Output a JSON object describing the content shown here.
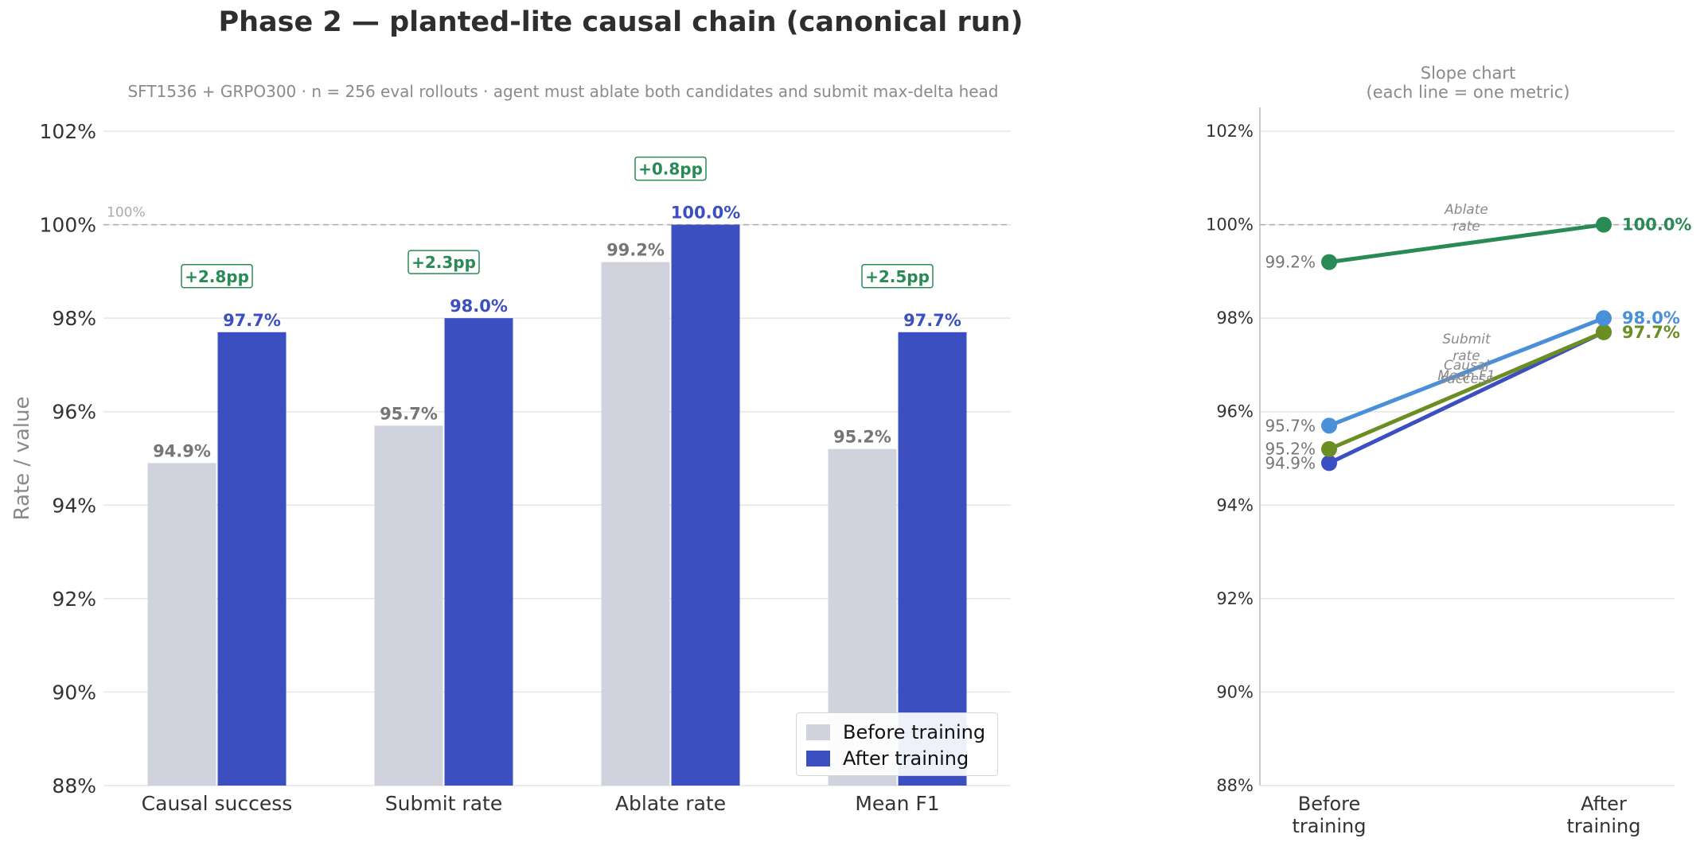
{
  "header": {
    "title": "Phase 2 — planted-lite causal chain (canonical run)",
    "subtitle": "SFT1536 + GRPO300 · n = 256 eval rollouts · agent must ablate both candidates and submit max-delta head",
    "slope_title_line1": "Slope chart",
    "slope_title_line2": "(each line = one metric)"
  },
  "legend": {
    "before_label": "Before training",
    "after_label": "After training"
  },
  "colors": {
    "before_bar": "#d0d3de",
    "after_bar": "#3c4fc0",
    "before_value_text": "#767676",
    "delta": "#2a8a55",
    "grid": "#e6e6e6",
    "reference_line": "#aaaaaa",
    "axis_text": "#333333",
    "muted_text": "#8a8a8a",
    "slope_causal": "#3c4fc0",
    "slope_submit": "#4a8fd9",
    "slope_ablate": "#2a8a55",
    "slope_f1": "#6b8e23"
  },
  "chart_data": [
    {
      "type": "bar",
      "title": "Phase 2 — planted-lite causal chain (canonical run)",
      "ylabel": "Rate / value",
      "ylim": [
        88,
        102
      ],
      "yticks": [
        "88%",
        "90%",
        "92%",
        "94%",
        "96%",
        "98%",
        "100%",
        "102%"
      ],
      "ytick_values": [
        88,
        90,
        92,
        94,
        96,
        98,
        100,
        102
      ],
      "categories": [
        "Causal success",
        "Submit rate",
        "Ablate rate",
        "Mean F1"
      ],
      "series": [
        {
          "name": "Before training",
          "values": [
            94.9,
            95.7,
            99.2,
            95.2
          ],
          "labels": [
            "94.9%",
            "95.7%",
            "99.2%",
            "95.2%"
          ]
        },
        {
          "name": "After training",
          "values": [
            97.7,
            98.0,
            100.0,
            97.7
          ],
          "labels": [
            "97.7%",
            "98.0%",
            "100.0%",
            "97.7%"
          ]
        }
      ],
      "deltas": [
        "+2.8pp",
        "+2.3pp",
        "+0.8pp",
        "+2.5pp"
      ],
      "reference_line": {
        "value": 100,
        "label": "100%"
      },
      "grid": true,
      "legend_position": "bottom-right"
    },
    {
      "type": "line",
      "title": "Slope chart (each line = one metric)",
      "ylim": [
        88,
        102
      ],
      "yticks": [
        "88%",
        "90%",
        "92%",
        "94%",
        "96%",
        "98%",
        "100%",
        "102%"
      ],
      "ytick_values": [
        88,
        90,
        92,
        94,
        96,
        98,
        100,
        102
      ],
      "x": [
        "Before training",
        "After training"
      ],
      "x_line1": [
        "Before",
        "After"
      ],
      "x_line2": [
        "training",
        "training"
      ],
      "reference_line": {
        "value": 100
      },
      "grid": true,
      "series": [
        {
          "name": "Causal success",
          "name_line1": "Causal",
          "name_line2": "success",
          "values": [
            94.9,
            97.7
          ],
          "start_label": "94.9%",
          "end_label": "",
          "color_key": "slope_causal"
        },
        {
          "name": "Submit rate",
          "name_line1": "Submit",
          "name_line2": "rate",
          "values": [
            95.7,
            98.0
          ],
          "start_label": "95.7%",
          "end_label": "98.0%",
          "color_key": "slope_submit"
        },
        {
          "name": "Ablate rate",
          "name_line1": "Ablate",
          "name_line2": "rate",
          "values": [
            99.2,
            100.0
          ],
          "start_label": "99.2%",
          "end_label": "100.0%",
          "color_key": "slope_ablate"
        },
        {
          "name": "Mean F1",
          "name_line1": "Mean F1",
          "name_line2": "",
          "values": [
            95.2,
            97.7
          ],
          "start_label": "95.2%",
          "end_label": "97.7%",
          "color_key": "slope_f1"
        }
      ]
    }
  ]
}
